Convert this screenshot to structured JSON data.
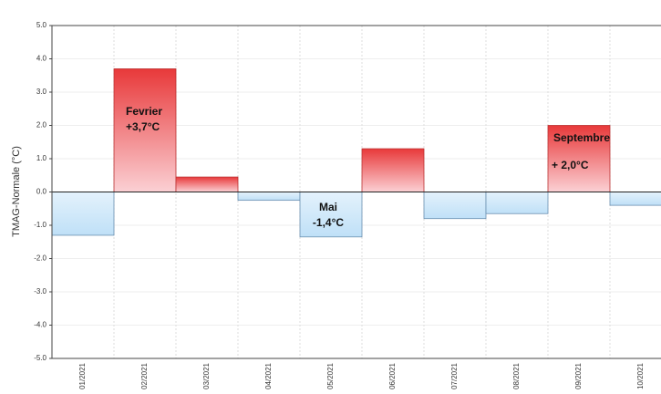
{
  "chart_data": {
    "type": "bar",
    "y_label": "TMAG-Normale (°C)",
    "categories": [
      "01/2021",
      "02/2021",
      "03/2021",
      "04/2021",
      "05/2021",
      "06/2021",
      "07/2021",
      "08/2021",
      "09/2021",
      "10/2021"
    ],
    "values": [
      -1.3,
      3.7,
      0.45,
      -0.25,
      -1.35,
      1.3,
      -0.8,
      -0.65,
      2.0,
      -0.4
    ],
    "colors": {
      "positive": "#e8393a",
      "negative": "#bfe0f7"
    },
    "ylim": [
      -5,
      5
    ],
    "yticks": [
      {
        "value": -5,
        "label": "-5.0"
      },
      {
        "value": -4,
        "label": "-4.0"
      },
      {
        "value": -3,
        "label": "-3.0"
      },
      {
        "value": -2,
        "label": "-2.0"
      },
      {
        "value": -1,
        "label": "-1.0"
      },
      {
        "value": 0,
        "label": "0.0"
      },
      {
        "value": 1,
        "label": "1.0"
      },
      {
        "value": 2,
        "label": "2.0"
      },
      {
        "value": 3,
        "label": "3.0"
      },
      {
        "value": 4,
        "label": "4.0"
      },
      {
        "value": 5,
        "label": "5.0"
      }
    ],
    "grid": true,
    "annotations": [
      [
        "Fevrier",
        "+3,7°C"
      ],
      [
        "Mai",
        "-1,4°C"
      ],
      [
        "Septembre",
        "+ 2,0°C"
      ]
    ]
  }
}
